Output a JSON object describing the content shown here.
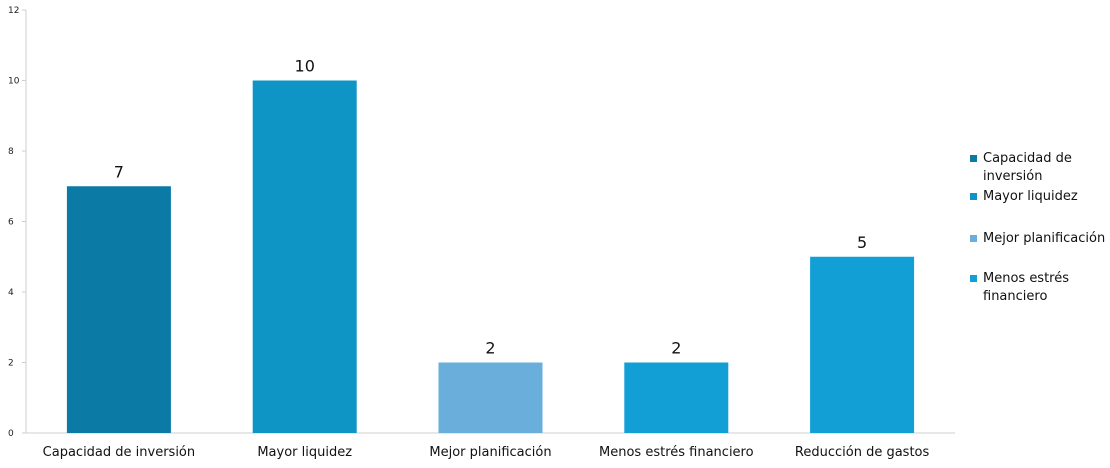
{
  "chart_data": {
    "type": "bar",
    "title": "",
    "xlabel": "",
    "ylabel": "",
    "categories": [
      "Capacidad de inversión",
      "Mayor liquidez",
      "Mejor planificación",
      "Menos estrés financiero",
      "Reducción de gastos"
    ],
    "values": [
      7,
      10,
      2,
      2,
      5
    ],
    "data_labels": [
      "7",
      "10",
      "2",
      "2",
      "5"
    ],
    "bar_colors": [
      "#0b7aa5",
      "#0e95c6",
      "#6aafdc",
      "#119fd6",
      "#119fd6"
    ],
    "ylim": [
      0,
      12
    ],
    "yticks": [
      0,
      2,
      4,
      6,
      8,
      10,
      12
    ],
    "grid": false,
    "legend_position": "right",
    "legend": [
      {
        "label": "Capacidad de inversión",
        "color": "#0b7aa5"
      },
      {
        "label": "Mayor liquidez",
        "color": "#0e95c6"
      },
      {
        "label": "Mejor planificación",
        "color": "#6aafdc"
      },
      {
        "label": "Menos estrés financiero",
        "color": "#119fd6"
      }
    ]
  }
}
